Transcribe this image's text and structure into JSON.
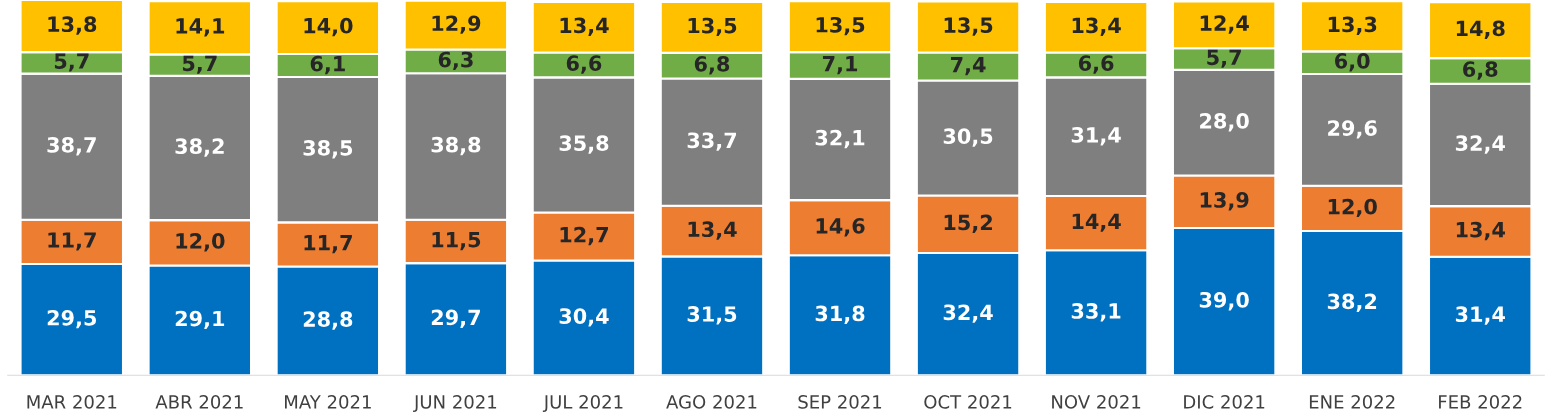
{
  "chart_data": {
    "type": "bar",
    "stacked": true,
    "legend": false,
    "grid": false,
    "tick_labels": "x",
    "categories": [
      "MAR 2021",
      "ABR 2021",
      "MAY 2021",
      "JUN 2021",
      "JUL 2021",
      "AGO 2021",
      "SEP 2021",
      "OCT 2021",
      "NOV 2021",
      "DIC 2021",
      "ENE 2022",
      "FEB 2022"
    ],
    "series": [
      {
        "color": "#0070c0",
        "values": [
          29.5,
          29.1,
          28.8,
          29.7,
          30.4,
          31.5,
          31.8,
          32.4,
          33.1,
          39.0,
          38.2,
          31.4
        ],
        "value_labels": [
          "29,5",
          "29,1",
          "28,8",
          "29,7",
          "30,4",
          "31,5",
          "31,8",
          "32,4",
          "33,1",
          "39,0",
          "38,2",
          "31,4"
        ]
      },
      {
        "color": "#ed7d31",
        "values": [
          11.7,
          12.0,
          11.7,
          11.5,
          12.7,
          13.4,
          14.6,
          15.2,
          14.4,
          13.9,
          12.0,
          13.4
        ],
        "value_labels": [
          "11,7",
          "12,0",
          "11,7",
          "11,5",
          "12,7",
          "13,4",
          "14,6",
          "15,2",
          "14,4",
          "13,9",
          "12,0",
          "13,4"
        ]
      },
      {
        "color": "#7f7f7f",
        "values": [
          38.7,
          38.2,
          38.5,
          38.8,
          35.8,
          33.7,
          32.1,
          30.5,
          31.4,
          28.0,
          29.6,
          32.4
        ],
        "value_labels": [
          "38,7",
          "38,2",
          "38,5",
          "38,8",
          "35,8",
          "33,7",
          "32,1",
          "30,5",
          "31,4",
          "28,0",
          "29,6",
          "32,4"
        ]
      },
      {
        "color": "#70ad47",
        "values": [
          5.7,
          5.7,
          6.1,
          6.3,
          6.6,
          6.8,
          7.1,
          7.4,
          6.6,
          5.7,
          6.0,
          6.8
        ],
        "value_labels": [
          "5,7",
          "5,7",
          "6,1",
          "6,3",
          "6,6",
          "6,8",
          "7,1",
          "7,4",
          "6,6",
          "5,7",
          "6,0",
          "6,8"
        ]
      },
      {
        "color": "#ffc000",
        "values": [
          13.8,
          14.1,
          14.0,
          12.9,
          13.4,
          13.5,
          13.5,
          13.5,
          13.4,
          12.4,
          13.3,
          14.8
        ],
        "value_labels": [
          "13,8",
          "14,1",
          "14,0",
          "12,9",
          "13,4",
          "13,5",
          "13,5",
          "13,5",
          "13,4",
          "12,4",
          "13,3",
          "14,8"
        ]
      }
    ]
  }
}
